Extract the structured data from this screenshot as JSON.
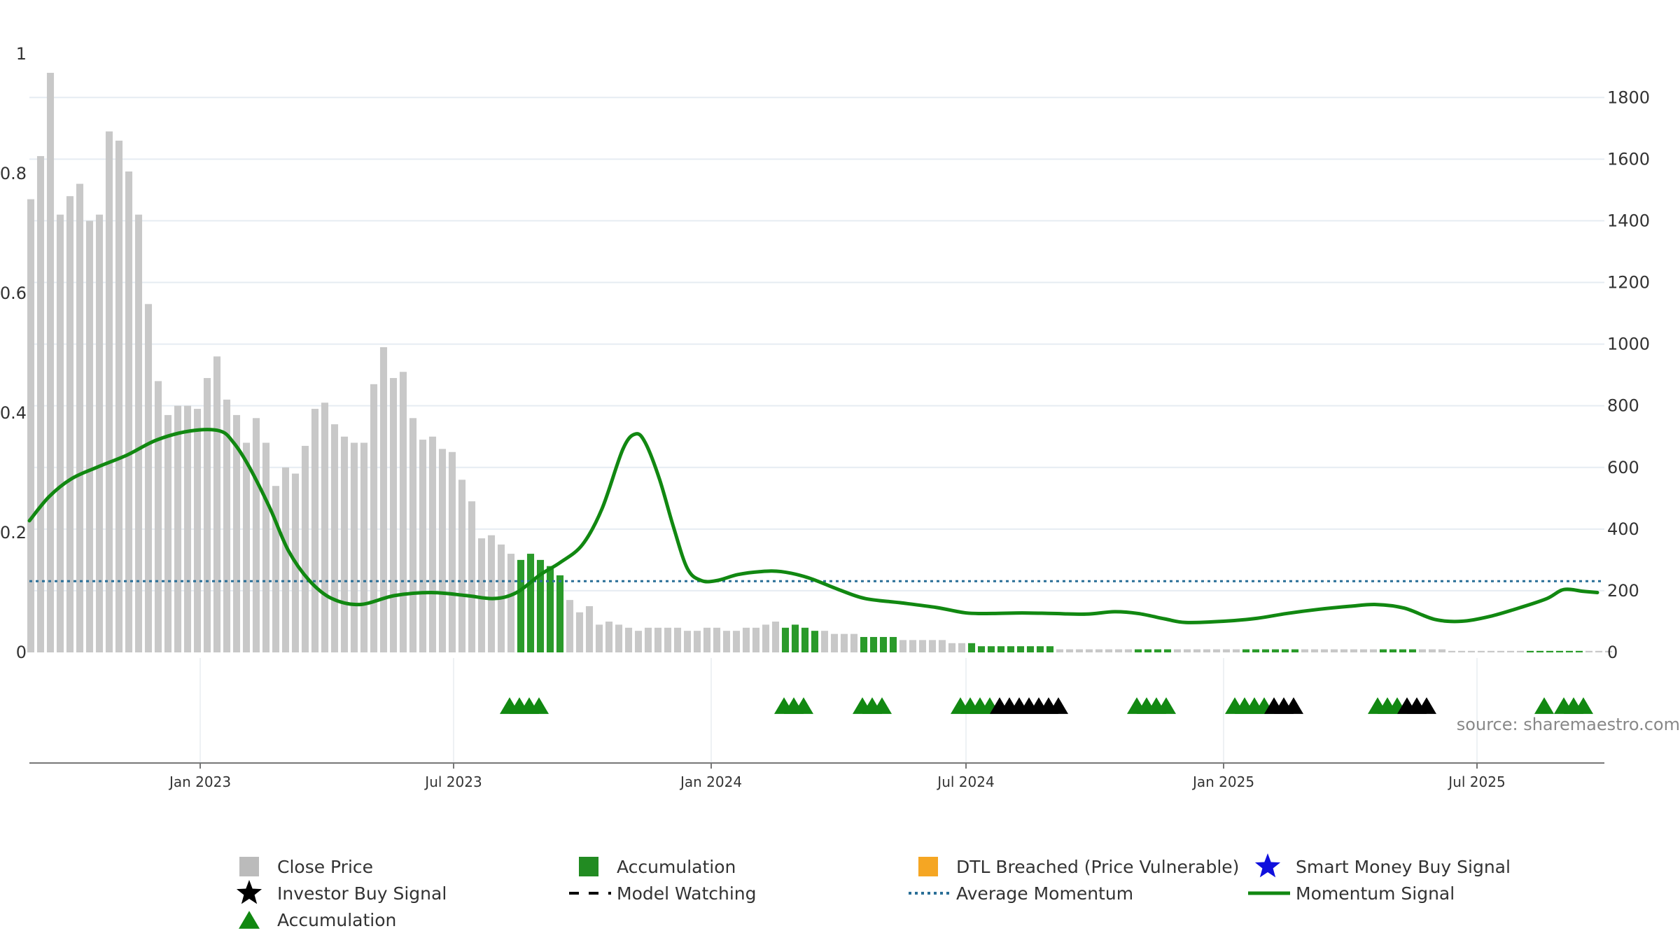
{
  "chart_data": {
    "type": "bar",
    "y_left_ticks": [
      "0",
      "0.2",
      "0.4",
      "0.6",
      "0.8",
      "1"
    ],
    "y_left_range": [
      0,
      1
    ],
    "y_right_ticks": [
      "0",
      "200",
      "400",
      "600",
      "800",
      "1000",
      "1200",
      "1400",
      "1600",
      "1800"
    ],
    "y_right_range": [
      0,
      1980
    ],
    "x_range": [
      "2022-09-01",
      "2025-09-30"
    ],
    "x_ticks": [
      {
        "date": "2023-01-01",
        "label": "Jan 2023"
      },
      {
        "date": "2023-07-01",
        "label": "Jul 2023"
      },
      {
        "date": "2024-01-01",
        "label": "Jan 2024"
      },
      {
        "date": "2024-07-01",
        "label": "Jul 2024"
      },
      {
        "date": "2025-01-01",
        "label": "Jan 2025"
      },
      {
        "date": "2025-07-01",
        "label": "Jul 2025"
      }
    ],
    "grid": true,
    "bar_period_days": 7,
    "close_price": {
      "start_date": "2022-09-02",
      "values": [
        1470,
        1610,
        1880,
        1420,
        1480,
        1520,
        1400,
        1420,
        1690,
        1660,
        1560,
        1420,
        1130,
        880,
        770,
        800,
        800,
        790,
        890,
        960,
        820,
        770,
        680,
        760,
        680,
        540,
        600,
        580,
        670,
        790,
        810,
        740,
        700,
        680,
        680,
        870,
        990,
        890,
        910,
        760,
        690,
        700,
        660,
        650,
        560,
        490,
        370,
        380,
        350,
        320,
        300,
        320,
        300,
        280,
        250,
        170,
        130,
        150,
        90,
        100,
        90,
        80,
        70,
        80,
        80,
        80,
        80,
        70,
        70,
        80,
        80,
        70,
        70,
        80,
        80,
        90,
        100,
        80,
        90,
        80,
        70,
        70,
        60,
        60,
        60,
        50,
        50,
        50,
        50,
        40,
        40,
        40,
        40,
        40,
        30,
        30,
        30,
        20,
        20,
        20,
        20,
        20,
        20,
        20,
        20,
        10,
        10,
        10,
        10,
        10,
        10,
        10,
        10,
        10,
        10,
        10,
        10,
        10,
        10,
        10,
        10,
        10,
        10,
        10,
        10,
        10,
        10,
        10,
        10,
        10,
        10,
        10,
        10,
        10,
        10,
        10,
        10,
        10,
        10,
        10,
        10,
        10,
        10,
        10,
        10,
        5,
        5,
        5,
        5,
        5,
        5,
        5,
        5,
        5,
        5,
        5,
        5,
        5,
        5,
        5,
        5,
        5
      ]
    },
    "accumulation_periods": [
      {
        "start": "2023-08-18",
        "end": "2023-09-15"
      },
      {
        "start": "2024-02-23",
        "end": "2024-03-15"
      },
      {
        "start": "2024-04-19",
        "end": "2024-05-10"
      },
      {
        "start": "2024-07-05",
        "end": "2024-08-30"
      },
      {
        "start": "2024-11-01",
        "end": "2024-11-22"
      },
      {
        "start": "2025-01-17",
        "end": "2025-02-21"
      },
      {
        "start": "2025-04-25",
        "end": "2025-05-16"
      },
      {
        "start": "2025-08-08",
        "end": "2025-09-12"
      }
    ],
    "accumulation_triangles": [
      "2023-08-10",
      "2023-08-17",
      "2023-08-24",
      "2023-08-31",
      "2024-02-22",
      "2024-02-29",
      "2024-03-07",
      "2024-04-18",
      "2024-04-25",
      "2024-05-02",
      "2024-06-27",
      "2024-07-04",
      "2024-07-11",
      "2024-07-18",
      "2024-10-31",
      "2024-11-07",
      "2024-11-14",
      "2024-11-21",
      "2025-01-09",
      "2025-01-16",
      "2025-01-23",
      "2025-01-30",
      "2025-04-21",
      "2025-04-28",
      "2025-05-05",
      "2025-08-18",
      "2025-09-01",
      "2025-09-08",
      "2025-09-15"
    ],
    "investor_buy_signals": [
      "2024-07-25",
      "2024-08-01",
      "2024-08-08",
      "2024-08-15",
      "2024-08-22",
      "2024-08-29",
      "2024-09-05",
      "2025-02-06",
      "2025-02-13",
      "2025-02-20",
      "2025-05-12",
      "2025-05-19",
      "2025-05-26"
    ],
    "average_momentum": 0.119,
    "momentum_signal": [
      {
        "date": "2022-09-01",
        "value": 0.22
      },
      {
        "date": "2022-09-15",
        "value": 0.26
      },
      {
        "date": "2022-10-01",
        "value": 0.29
      },
      {
        "date": "2022-10-20",
        "value": 0.31
      },
      {
        "date": "2022-11-10",
        "value": 0.33
      },
      {
        "date": "2022-12-01",
        "value": 0.355
      },
      {
        "date": "2022-12-25",
        "value": 0.37
      },
      {
        "date": "2023-01-15",
        "value": 0.37
      },
      {
        "date": "2023-01-25",
        "value": 0.35
      },
      {
        "date": "2023-02-05",
        "value": 0.31
      },
      {
        "date": "2023-02-20",
        "value": 0.24
      },
      {
        "date": "2023-03-05",
        "value": 0.17
      },
      {
        "date": "2023-03-20",
        "value": 0.12
      },
      {
        "date": "2023-04-05",
        "value": 0.09
      },
      {
        "date": "2023-04-25",
        "value": 0.08
      },
      {
        "date": "2023-05-20",
        "value": 0.095
      },
      {
        "date": "2023-06-15",
        "value": 0.1
      },
      {
        "date": "2023-07-10",
        "value": 0.095
      },
      {
        "date": "2023-07-30",
        "value": 0.09
      },
      {
        "date": "2023-08-15",
        "value": 0.1
      },
      {
        "date": "2023-09-01",
        "value": 0.13
      },
      {
        "date": "2023-09-15",
        "value": 0.15
      },
      {
        "date": "2023-10-01",
        "value": 0.18
      },
      {
        "date": "2023-10-15",
        "value": 0.24
      },
      {
        "date": "2023-10-30",
        "value": 0.34
      },
      {
        "date": "2023-11-08",
        "value": 0.365
      },
      {
        "date": "2023-11-15",
        "value": 0.35
      },
      {
        "date": "2023-11-25",
        "value": 0.29
      },
      {
        "date": "2023-12-05",
        "value": 0.21
      },
      {
        "date": "2023-12-15",
        "value": 0.14
      },
      {
        "date": "2023-12-25",
        "value": 0.12
      },
      {
        "date": "2024-01-05",
        "value": 0.12
      },
      {
        "date": "2024-01-20",
        "value": 0.13
      },
      {
        "date": "2024-02-05",
        "value": 0.135
      },
      {
        "date": "2024-02-20",
        "value": 0.135
      },
      {
        "date": "2024-03-10",
        "value": 0.125
      },
      {
        "date": "2024-04-01",
        "value": 0.105
      },
      {
        "date": "2024-04-20",
        "value": 0.09
      },
      {
        "date": "2024-05-15",
        "value": 0.083
      },
      {
        "date": "2024-06-10",
        "value": 0.075
      },
      {
        "date": "2024-07-01",
        "value": 0.066
      },
      {
        "date": "2024-07-20",
        "value": 0.065
      },
      {
        "date": "2024-08-10",
        "value": 0.066
      },
      {
        "date": "2024-09-01",
        "value": 0.065
      },
      {
        "date": "2024-09-25",
        "value": 0.064
      },
      {
        "date": "2024-10-15",
        "value": 0.068
      },
      {
        "date": "2024-11-01",
        "value": 0.065
      },
      {
        "date": "2024-11-20",
        "value": 0.056
      },
      {
        "date": "2024-12-05",
        "value": 0.05
      },
      {
        "date": "2025-01-01",
        "value": 0.052
      },
      {
        "date": "2025-01-25",
        "value": 0.057
      },
      {
        "date": "2025-02-15",
        "value": 0.065
      },
      {
        "date": "2025-03-10",
        "value": 0.072
      },
      {
        "date": "2025-04-01",
        "value": 0.077
      },
      {
        "date": "2025-04-20",
        "value": 0.08
      },
      {
        "date": "2025-05-10",
        "value": 0.074
      },
      {
        "date": "2025-06-01",
        "value": 0.055
      },
      {
        "date": "2025-06-20",
        "value": 0.052
      },
      {
        "date": "2025-07-10",
        "value": 0.06
      },
      {
        "date": "2025-08-01",
        "value": 0.075
      },
      {
        "date": "2025-08-20",
        "value": 0.09
      },
      {
        "date": "2025-09-01",
        "value": 0.105
      },
      {
        "date": "2025-09-15",
        "value": 0.102
      },
      {
        "date": "2025-09-25",
        "value": 0.1
      }
    ],
    "momentum_signal_tail": [
      {
        "date": "2025-05-25",
        "value": 0.075
      },
      {
        "date": "2025-06-10",
        "value": 0.085
      },
      {
        "date": "2025-06-25",
        "value": 0.092
      },
      {
        "date": "2025-07-10",
        "value": 0.096
      },
      {
        "date": "2025-07-25",
        "value": 0.1
      },
      {
        "date": "2025-08-10",
        "value": 0.095
      },
      {
        "date": "2025-08-20",
        "value": 0.089
      },
      {
        "date": "2025-09-01",
        "value": 0.087
      },
      {
        "date": "2025-09-05",
        "value": 0.081
      },
      {
        "date": "2025-09-08",
        "value": 0.06
      },
      {
        "date": "2025-09-15",
        "value": 0.06
      },
      {
        "date": "2025-09-20",
        "value": 0.099
      },
      {
        "date": "2025-09-25",
        "value": 0.1
      },
      {
        "date": "2025-09-30",
        "value": 0.095
      }
    ],
    "source_label": "source: sharemaestro.com",
    "legend": [
      {
        "label": "Close Price",
        "symbol": "square",
        "color": "#bbbbbb"
      },
      {
        "label": "Accumulation",
        "symbol": "square",
        "color": "#228b22"
      },
      {
        "label": "DTL Breached (Price Vulnerable)",
        "symbol": "square",
        "color": "#f5a623"
      },
      {
        "label": "Smart Money Buy Signal",
        "symbol": "star",
        "color": "#1010dd"
      },
      {
        "label": "Investor Buy Signal",
        "symbol": "star",
        "color": "#000000"
      },
      {
        "label": "Model Watching",
        "symbol": "dash",
        "color": "#000000"
      },
      {
        "label": "Average Momentum",
        "symbol": "dotted",
        "color": "#2a6f97"
      },
      {
        "label": "Momentum Signal",
        "symbol": "line",
        "color": "#118811"
      },
      {
        "label": "Accumulation",
        "symbol": "triangle",
        "color": "#118811"
      }
    ],
    "colors": {
      "close_price": "#c8c8c8",
      "accumulation_bar": "#2a9a2a",
      "momentum_line": "#118811",
      "average_momentum": "#2a6f97",
      "investor_star": "#000000",
      "accumulation_triangle": "#118811",
      "grid": "#e6ecf2",
      "axis": "#777777"
    }
  }
}
